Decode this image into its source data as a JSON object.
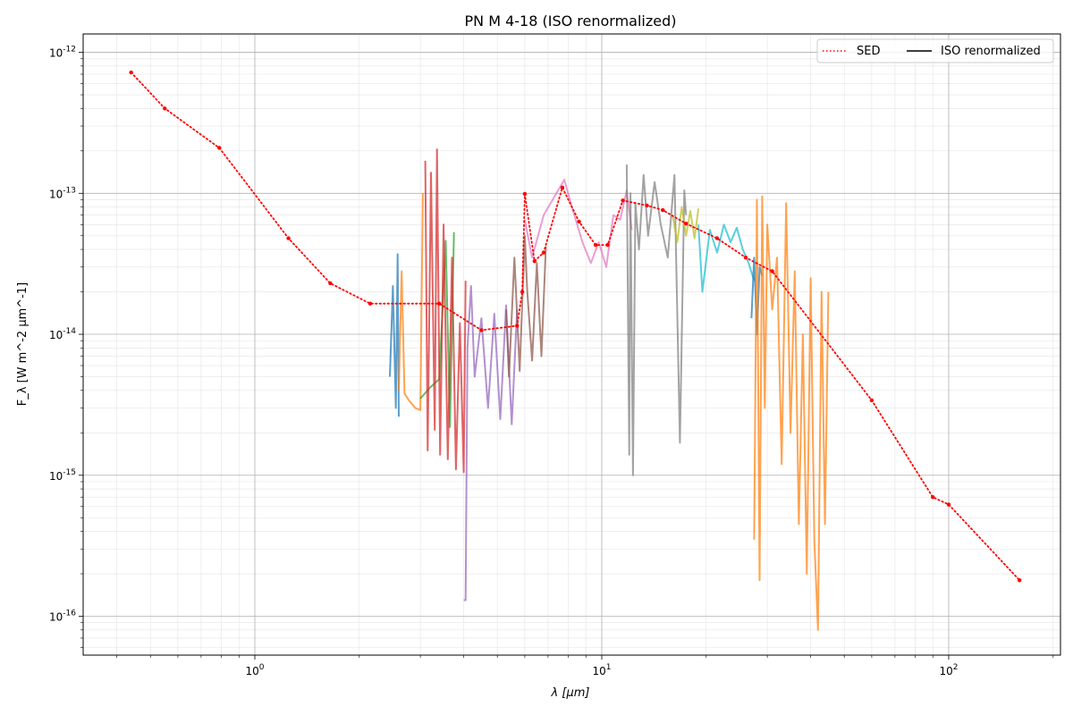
{
  "chart_data": {
    "type": "line",
    "title": "PN M 4-18 (ISO renormalized)",
    "xlabel": "λ [μm]",
    "ylabel": "F_λ [W m^-2 μm^-1]",
    "x_scale": "log",
    "y_scale": "log",
    "xlim": [
      0.32,
      210
    ],
    "ylim": [
      5.3e-17,
      1.35e-12
    ],
    "x_ticks": [
      1,
      10,
      100
    ],
    "x_tick_labels": [
      "10^0",
      "10^1",
      "10^2"
    ],
    "y_ticks": [
      1e-16,
      1e-15,
      1e-14,
      1e-13,
      1e-12
    ],
    "y_tick_labels": [
      "10^-16",
      "10^-15",
      "10^-14",
      "10^-13",
      "10^-12"
    ],
    "grid": true,
    "legend": {
      "position": "top-right",
      "entries": [
        {
          "label": "SED",
          "style": "dotted",
          "color": "#ff0000"
        },
        {
          "label": "ISO renormalized",
          "style": "solid",
          "color": "#000000"
        }
      ]
    },
    "sed": {
      "name": "SED",
      "color": "#ff0000",
      "x": [
        0.44,
        0.55,
        0.79,
        1.25,
        1.65,
        2.15,
        3.4,
        4.5,
        5.7,
        5.9,
        6.0,
        6.4,
        6.8,
        7.7,
        8.6,
        9.6,
        10.4,
        11.5,
        13.5,
        15.0,
        17.5,
        21.5,
        26.0,
        31.0,
        60.0,
        90.0,
        100.0,
        160.0
      ],
      "y": [
        7.2e-13,
        4e-13,
        2.1e-13,
        4.8e-14,
        2.3e-14,
        1.65e-14,
        1.65e-14,
        1.07e-14,
        1.15e-14,
        2e-14,
        9.9e-14,
        3.3e-14,
        3.8e-14,
        1.1e-13,
        6.3e-14,
        4.3e-14,
        4.3e-14,
        8.9e-14,
        8.2e-14,
        7.6e-14,
        6.1e-14,
        4.8e-14,
        3.5e-14,
        2.8e-14,
        3.4e-15,
        7e-16,
        6.2e-16,
        1.8e-16
      ]
    },
    "iso_segments": [
      {
        "color": "#1f77b4",
        "x": [
          2.45,
          2.5,
          2.55,
          2.58,
          2.6
        ],
        "y": [
          5e-15,
          2.2e-14,
          3e-15,
          3.7e-14,
          2.6e-15
        ]
      },
      {
        "color": "#ff7f0e",
        "x": [
          2.6,
          2.65,
          2.7,
          2.78,
          2.9,
          3.0,
          3.05
        ],
        "y": [
          4e-15,
          2.8e-14,
          3.8e-15,
          3.4e-15,
          3e-15,
          2.9e-15,
          1e-13
        ]
      },
      {
        "color": "#2ca02c",
        "x": [
          3.0,
          3.2,
          3.4,
          3.55,
          3.65,
          3.75
        ],
        "y": [
          3.5e-15,
          4.2e-15,
          4.8e-15,
          4.6e-14,
          2.2e-15,
          5.3e-14
        ]
      },
      {
        "color": "#d62728",
        "x": [
          3.1,
          3.15,
          3.22,
          3.3,
          3.35,
          3.42,
          3.5,
          3.6,
          3.7,
          3.8,
          3.9,
          4.0,
          4.05
        ],
        "y": [
          1.7e-13,
          1.5e-15,
          1.4e-13,
          2.1e-15,
          2.05e-13,
          1.4e-15,
          6e-14,
          1.3e-15,
          3.5e-14,
          1.1e-15,
          1.2e-14,
          1.05e-15,
          2.4e-14
        ]
      },
      {
        "color": "#9467bd",
        "x": [
          4.0,
          4.05,
          4.1,
          4.2,
          4.3,
          4.5,
          4.7,
          4.9,
          5.1,
          5.3,
          5.5,
          5.7
        ],
        "y": [
          1.3e-16,
          1.3e-16,
          8e-15,
          2.2e-14,
          5e-15,
          1.3e-14,
          3e-15,
          1.4e-14,
          2.5e-15,
          1.6e-14,
          2.3e-15,
          1.5e-14
        ]
      },
      {
        "color": "#8c564b",
        "x": [
          5.3,
          5.4,
          5.6,
          5.8,
          6.0,
          6.1,
          6.3,
          6.5,
          6.7,
          6.9
        ],
        "y": [
          1.5e-14,
          5e-15,
          3.5e-14,
          5.5e-15,
          5e-14,
          2e-14,
          6.5e-15,
          3.2e-14,
          7e-15,
          4.2e-14
        ]
      },
      {
        "color": "#e377c2",
        "x": [
          6.0,
          6.3,
          6.8,
          7.4,
          7.8,
          8.2,
          8.8,
          9.3,
          9.8,
          10.3,
          10.8,
          11.3,
          11.8,
          12.2
        ],
        "y": [
          6.5e-14,
          3.5e-14,
          7e-14,
          1e-13,
          1.25e-13,
          8e-14,
          4.5e-14,
          3.2e-14,
          4.5e-14,
          3e-14,
          7e-14,
          6.5e-14,
          1.05e-13,
          5.5e-14
        ]
      },
      {
        "color": "#7f7f7f",
        "x": [
          11.8,
          12.0,
          12.1,
          12.3,
          12.5,
          12.8,
          13.2,
          13.6,
          14.2,
          14.8,
          15.5,
          16.2,
          16.8,
          17.3,
          17.5
        ],
        "y": [
          1.6e-13,
          1.4e-15,
          1e-13,
          1e-15,
          8.5e-14,
          4e-14,
          1.35e-13,
          5e-14,
          1.2e-13,
          6e-14,
          3.5e-14,
          1.35e-13,
          1.7e-15,
          1.05e-13,
          7e-14
        ]
      },
      {
        "color": "#bcbd22",
        "x": [
          16.0,
          16.5,
          17.0,
          17.5,
          18.0,
          18.5,
          19.0
        ],
        "y": [
          7e-14,
          4.5e-14,
          8e-14,
          5e-14,
          7.5e-14,
          4.8e-14,
          7.8e-14
        ]
      },
      {
        "color": "#17becf",
        "x": [
          19.0,
          19.5,
          20.5,
          21.5,
          22.5,
          23.5,
          24.5,
          25.5,
          26.5,
          27.5
        ],
        "y": [
          6e-14,
          2e-14,
          5.5e-14,
          3.8e-14,
          6e-14,
          4.5e-14,
          5.7e-14,
          4e-14,
          3.2e-14,
          2.4e-14
        ]
      },
      {
        "color": "#1f77b4",
        "x": [
          27.0,
          27.5,
          28.0,
          28.5,
          29.0
        ],
        "y": [
          1.3e-14,
          3.5e-14,
          1e-14,
          3e-14,
          2.6e-14
        ]
      },
      {
        "color": "#ff7f0e",
        "x": [
          27.5,
          28.0,
          28.5,
          29.0,
          29.5,
          30.0,
          31.0,
          32.0,
          33.0,
          34.0,
          35.0,
          36.0,
          37.0,
          38.0,
          39.0,
          40.0,
          41.0,
          42.0,
          43.0,
          44.0,
          45.0
        ],
        "y": [
          3.5e-16,
          9e-14,
          1.8e-16,
          9.5e-14,
          3e-15,
          6e-14,
          1.5e-14,
          3.5e-14,
          1.2e-15,
          8.5e-14,
          2e-15,
          2.8e-14,
          4.5e-16,
          1e-14,
          2e-16,
          2.5e-14,
          3.5e-16,
          8e-17,
          2e-14,
          4.5e-16,
          2e-14
        ]
      }
    ]
  }
}
